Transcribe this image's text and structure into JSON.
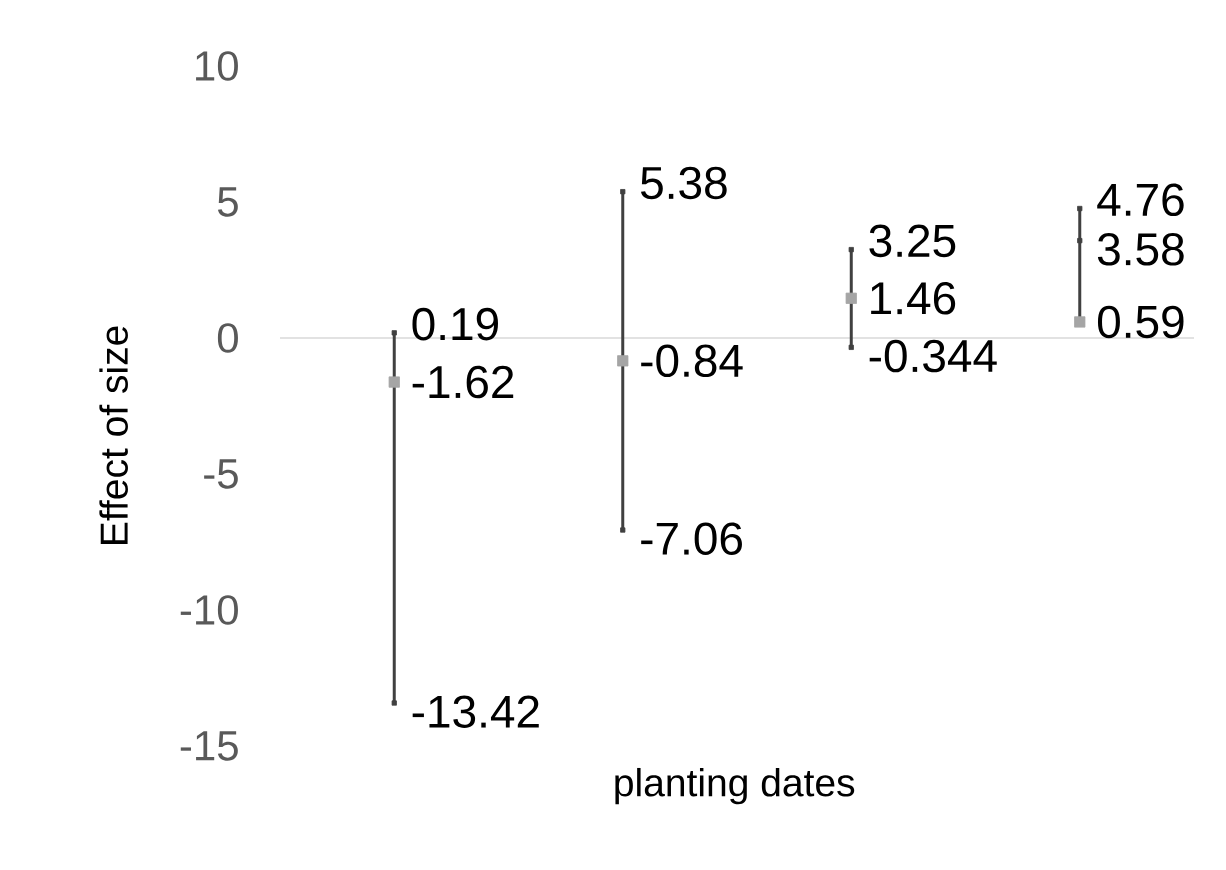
{
  "chart_data": {
    "type": "scatter",
    "xlabel": "planting dates",
    "ylabel": "Effect of size",
    "categories": [
      null,
      null,
      null,
      null
    ],
    "ylim": [
      -15,
      10
    ],
    "yticks": [
      -15,
      -10,
      -5,
      0,
      5,
      10
    ],
    "data_labels": true,
    "marker": "square",
    "series": [
      {
        "values": [
          0.19,
          5.38,
          3.25,
          4.76
        ],
        "color": "#404040"
      },
      {
        "values": [
          -13.42,
          -7.06,
          -0.344,
          3.58
        ],
        "color": "#404040"
      },
      {
        "values": [
          -1.62,
          -0.84,
          1.46,
          0.59
        ],
        "color": "#a5a5a5"
      }
    ]
  }
}
